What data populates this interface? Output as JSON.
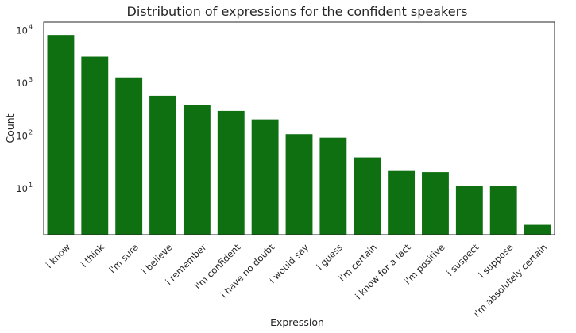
{
  "chart_data": {
    "type": "bar",
    "title": "Distribution of expressions for the confident speakers",
    "xlabel": "Expression",
    "ylabel": "Count",
    "yscale": "log",
    "ylim": [
      1.3,
      14000
    ],
    "yticks": [
      {
        "value": 10,
        "base": "10",
        "exp": "1"
      },
      {
        "value": 100,
        "base": "10",
        "exp": "2"
      },
      {
        "value": 1000,
        "base": "10",
        "exp": "3"
      },
      {
        "value": 10000,
        "base": "10",
        "exp": "4"
      }
    ],
    "grid": false,
    "bar_color": "#0e7010",
    "categories": [
      "i know",
      "i think",
      "i'm sure",
      "i believe",
      "i remember",
      "i'm confident",
      "i have no doubt",
      "i would say",
      "i guess",
      "i'm certain",
      "i know for a fact",
      "i'm positive",
      "i suspect",
      "i suppose",
      "i'm absolutely certain"
    ],
    "values": [
      8000,
      3100,
      1250,
      560,
      370,
      290,
      200,
      105,
      90,
      38,
      21,
      20,
      11,
      11,
      2
    ]
  }
}
